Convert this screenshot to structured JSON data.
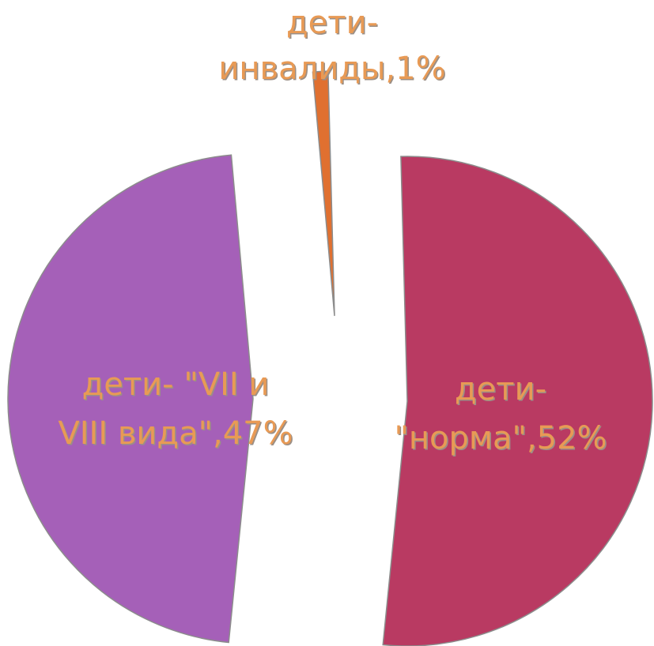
{
  "chart_data": {
    "type": "pie",
    "title": "",
    "exploded": true,
    "slices": [
      {
        "label_lines": [
          "дети-",
          "\"норма\",52%"
        ],
        "category": "дети- \"норма\"",
        "value": 52,
        "color": "#b93a62"
      },
      {
        "label_lines": [
          "дети- \"VII и",
          "VIII вида\",47%"
        ],
        "category": "дети- \"VII и VIII вида\"",
        "value": 47,
        "color": "#a560b8"
      },
      {
        "label_lines": [
          "дети-",
          "инвалиды,1%"
        ],
        "category": "дети-инвалиды",
        "value": 1,
        "color": "#e07030"
      }
    ],
    "label_color": "#e89a55",
    "legend": "none"
  }
}
